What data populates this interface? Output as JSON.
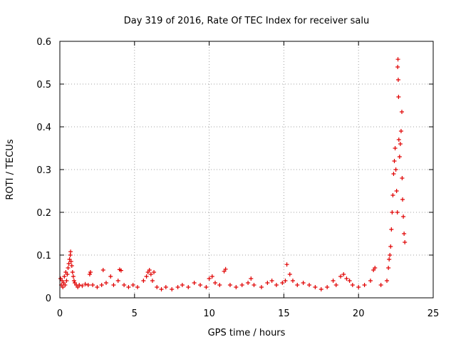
{
  "chart_data": {
    "type": "scatter",
    "title": "Day 319 of 2016, Rate Of TEC Index for receiver salu",
    "xlabel": "GPS time / hours",
    "ylabel": "ROTI / TECUs",
    "xlim": [
      0,
      25
    ],
    "ylim": [
      0,
      0.6
    ],
    "xticks": [
      0,
      5,
      10,
      15,
      20,
      25
    ],
    "yticks": [
      0,
      0.1,
      0.2,
      0.3,
      0.4,
      0.5,
      0.6
    ],
    "grid": true,
    "marker": "+",
    "color": "#e00000",
    "points": [
      [
        0.05,
        0.045
      ],
      [
        0.1,
        0.03
      ],
      [
        0.15,
        0.04
      ],
      [
        0.2,
        0.025
      ],
      [
        0.25,
        0.035
      ],
      [
        0.3,
        0.05
      ],
      [
        0.35,
        0.03
      ],
      [
        0.4,
        0.06
      ],
      [
        0.45,
        0.04
      ],
      [
        0.5,
        0.055
      ],
      [
        0.55,
        0.07
      ],
      [
        0.6,
        0.08
      ],
      [
        0.65,
        0.09
      ],
      [
        0.7,
        0.1
      ],
      [
        0.72,
        0.108
      ],
      [
        0.75,
        0.085
      ],
      [
        0.8,
        0.075
      ],
      [
        0.85,
        0.06
      ],
      [
        0.9,
        0.05
      ],
      [
        0.95,
        0.04
      ],
      [
        1.0,
        0.035
      ],
      [
        1.1,
        0.03
      ],
      [
        1.2,
        0.025
      ],
      [
        1.3,
        0.03
      ],
      [
        1.5,
        0.028
      ],
      [
        1.7,
        0.032
      ],
      [
        1.9,
        0.03
      ],
      [
        2.0,
        0.055
      ],
      [
        2.05,
        0.06
      ],
      [
        2.2,
        0.03
      ],
      [
        2.5,
        0.025
      ],
      [
        2.8,
        0.03
      ],
      [
        2.9,
        0.065
      ],
      [
        3.1,
        0.035
      ],
      [
        3.4,
        0.05
      ],
      [
        3.6,
        0.03
      ],
      [
        3.9,
        0.04
      ],
      [
        4.0,
        0.066
      ],
      [
        4.1,
        0.064
      ],
      [
        4.3,
        0.03
      ],
      [
        4.6,
        0.025
      ],
      [
        4.9,
        0.03
      ],
      [
        5.2,
        0.025
      ],
      [
        5.6,
        0.04
      ],
      [
        5.8,
        0.05
      ],
      [
        5.9,
        0.06
      ],
      [
        6.0,
        0.065
      ],
      [
        6.1,
        0.055
      ],
      [
        6.2,
        0.04
      ],
      [
        6.3,
        0.06
      ],
      [
        6.5,
        0.025
      ],
      [
        6.8,
        0.02
      ],
      [
        7.1,
        0.025
      ],
      [
        7.5,
        0.02
      ],
      [
        7.9,
        0.025
      ],
      [
        8.2,
        0.03
      ],
      [
        8.6,
        0.025
      ],
      [
        9.0,
        0.035
      ],
      [
        9.4,
        0.03
      ],
      [
        9.8,
        0.025
      ],
      [
        10.0,
        0.045
      ],
      [
        10.2,
        0.05
      ],
      [
        10.4,
        0.035
      ],
      [
        10.7,
        0.03
      ],
      [
        11.0,
        0.062
      ],
      [
        11.1,
        0.067
      ],
      [
        11.4,
        0.03
      ],
      [
        11.8,
        0.025
      ],
      [
        12.2,
        0.03
      ],
      [
        12.6,
        0.035
      ],
      [
        12.8,
        0.045
      ],
      [
        13.0,
        0.03
      ],
      [
        13.5,
        0.025
      ],
      [
        13.9,
        0.035
      ],
      [
        14.2,
        0.04
      ],
      [
        14.5,
        0.03
      ],
      [
        14.9,
        0.035
      ],
      [
        15.1,
        0.04
      ],
      [
        15.2,
        0.078
      ],
      [
        15.4,
        0.055
      ],
      [
        15.6,
        0.04
      ],
      [
        15.9,
        0.03
      ],
      [
        16.3,
        0.035
      ],
      [
        16.7,
        0.03
      ],
      [
        17.1,
        0.025
      ],
      [
        17.5,
        0.02
      ],
      [
        17.9,
        0.025
      ],
      [
        18.3,
        0.04
      ],
      [
        18.5,
        0.03
      ],
      [
        18.8,
        0.05
      ],
      [
        19.0,
        0.055
      ],
      [
        19.2,
        0.045
      ],
      [
        19.4,
        0.04
      ],
      [
        19.6,
        0.03
      ],
      [
        20.0,
        0.025
      ],
      [
        20.4,
        0.03
      ],
      [
        20.8,
        0.04
      ],
      [
        21.0,
        0.065
      ],
      [
        21.1,
        0.07
      ],
      [
        21.5,
        0.03
      ],
      [
        21.9,
        0.04
      ],
      [
        22.0,
        0.07
      ],
      [
        22.05,
        0.09
      ],
      [
        22.1,
        0.1
      ],
      [
        22.15,
        0.12
      ],
      [
        22.2,
        0.16
      ],
      [
        22.25,
        0.2
      ],
      [
        22.3,
        0.24
      ],
      [
        22.35,
        0.29
      ],
      [
        22.4,
        0.32
      ],
      [
        22.45,
        0.35
      ],
      [
        22.5,
        0.3
      ],
      [
        22.55,
        0.25
      ],
      [
        22.6,
        0.2
      ],
      [
        22.62,
        0.54
      ],
      [
        22.64,
        0.558
      ],
      [
        22.66,
        0.51
      ],
      [
        22.68,
        0.47
      ],
      [
        22.7,
        0.37
      ],
      [
        22.75,
        0.33
      ],
      [
        22.8,
        0.36
      ],
      [
        22.85,
        0.39
      ],
      [
        22.9,
        0.435
      ],
      [
        22.92,
        0.28
      ],
      [
        22.95,
        0.23
      ],
      [
        23.0,
        0.19
      ],
      [
        23.05,
        0.15
      ],
      [
        23.1,
        0.13
      ]
    ]
  }
}
